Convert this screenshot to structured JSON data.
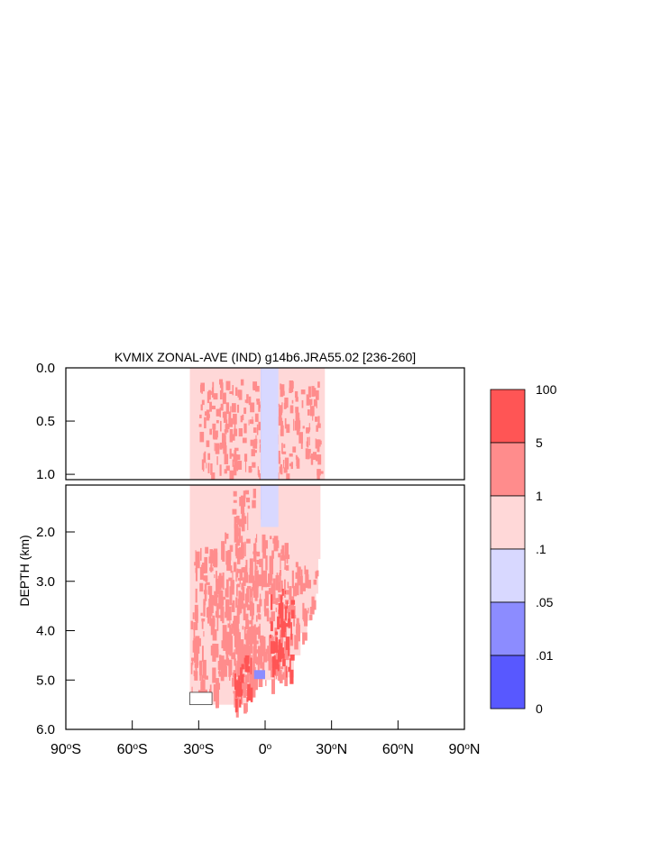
{
  "chart_data": {
    "type": "heatmap",
    "title": "KVMIX ZONAL-AVE (IND) g14b6.JRA55.02 [236-260]",
    "ylabel": "DEPTH (km)",
    "xlim": [
      -90,
      90
    ],
    "ylim_upper_km": [
      0.0,
      1.05
    ],
    "ylim_lower_km": [
      1.05,
      6.0
    ],
    "x_ticks": [
      {
        "value": -90,
        "label": "90",
        "hemi": "S"
      },
      {
        "value": -60,
        "label": "60",
        "hemi": "S"
      },
      {
        "value": -30,
        "label": "30",
        "hemi": "S"
      },
      {
        "value": 0,
        "label": "0",
        "hemi": ""
      },
      {
        "value": 30,
        "label": "30",
        "hemi": "N"
      },
      {
        "value": 60,
        "label": "60",
        "hemi": "N"
      },
      {
        "value": 90,
        "label": "90",
        "hemi": "N"
      }
    ],
    "y_ticks_upper": [
      {
        "value": 0.0,
        "label": "0.0"
      },
      {
        "value": 0.5,
        "label": "0.5"
      },
      {
        "value": 1.0,
        "label": "1.0"
      }
    ],
    "y_ticks_lower": [
      {
        "value": 2.0,
        "label": "2.0"
      },
      {
        "value": 3.0,
        "label": "3.0"
      },
      {
        "value": 4.0,
        "label": "4.0"
      },
      {
        "value": 5.0,
        "label": "5.0"
      },
      {
        "value": 6.0,
        "label": "6.0"
      }
    ],
    "colorbar": {
      "bins": [
        {
          "range": [
            5,
            100
          ],
          "color": "#ff5555"
        },
        {
          "range": [
            1,
            5
          ],
          "color": "#ff8c8c"
        },
        {
          "range": [
            0.1,
            1
          ],
          "color": "#ffd8d8"
        },
        {
          "range": [
            0.05,
            0.1
          ],
          "color": "#d8d8ff"
        },
        {
          "range": [
            0.01,
            0.05
          ],
          "color": "#8c8cff"
        },
        {
          "range": [
            0,
            0.01
          ],
          "color": "#5858ff"
        }
      ],
      "labels": [
        "100",
        "5",
        "1",
        ".1",
        ".05",
        ".01",
        "0"
      ]
    },
    "ocean_extent": {
      "lat_min": -34,
      "lat_max_by_depth": [
        {
          "depth": 0.0,
          "lat": 27
        },
        {
          "depth": 1.05,
          "lat": 25
        },
        {
          "depth": 2.05,
          "lat": 25
        },
        {
          "depth": 2.55,
          "lat": 24
        },
        {
          "depth": 3.25,
          "lat": 23
        },
        {
          "depth": 3.5,
          "lat": 21
        },
        {
          "depth": 3.8,
          "lat": 19
        },
        {
          "depth": 4.05,
          "lat": 16
        },
        {
          "depth": 4.5,
          "lat": 13
        },
        {
          "depth": 4.95,
          "lat": 9
        },
        {
          "depth": 5.0,
          "lat": -5
        },
        {
          "depth": 5.25,
          "lat": -8
        },
        {
          "depth": 5.5,
          "lat": -8
        }
      ],
      "deep_edges": [
        {
          "lat_from": -34,
          "lat_to": -24,
          "depth": 5.25
        },
        {
          "lat_from": -24,
          "lat_to": -8,
          "depth": 5.5
        }
      ]
    },
    "regions": [
      {
        "level": "1-5",
        "lat": [
          -34,
          -20
        ],
        "depth": [
          2.3,
          5.3
        ]
      },
      {
        "level": "1-5",
        "lat": [
          -20,
          10
        ],
        "depth": [
          2.0,
          5.0
        ]
      },
      {
        "level": "1-5",
        "lat": [
          -15,
          -5
        ],
        "depth": [
          1.1,
          5.5
        ]
      },
      {
        "level": "1-5",
        "lat": [
          10,
          24
        ],
        "depth": [
          2.6,
          4.1
        ]
      },
      {
        "level": "1-5",
        "lat": [
          -30,
          25
        ],
        "depth": [
          0.1,
          1.0
        ]
      },
      {
        "level": "5-100",
        "lat": [
          2,
          12
        ],
        "depth": [
          3.1,
          4.8
        ]
      },
      {
        "level": "5-100",
        "lat": [
          -14,
          -6
        ],
        "depth": [
          4.5,
          5.5
        ]
      },
      {
        "level": "0.01-0.05",
        "lat": [
          -2,
          3
        ],
        "depth": [
          0.0,
          1.75
        ]
      },
      {
        "level": "0.05-0.1",
        "lat": [
          -2,
          6
        ],
        "depth": [
          0.0,
          1.9
        ]
      },
      {
        "level": "0.01-0.05",
        "lat": [
          -5,
          0
        ],
        "depth": [
          4.8,
          4.98
        ]
      }
    ]
  }
}
